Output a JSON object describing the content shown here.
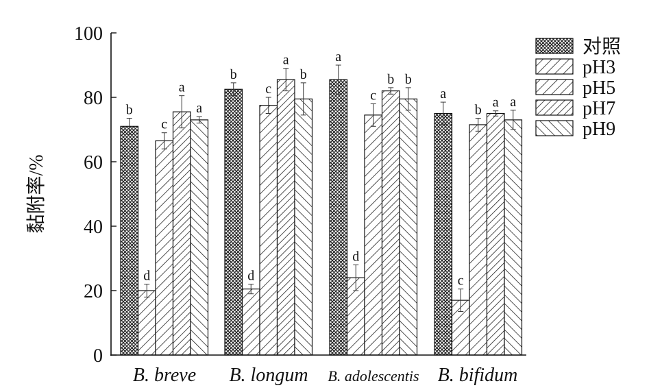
{
  "chart_data": {
    "type": "bar",
    "title": "",
    "xlabel": "",
    "ylabel": "黏附率/%",
    "ylim": [
      0,
      100
    ],
    "yticks": [
      0,
      20,
      40,
      60,
      80,
      100
    ],
    "grid": false,
    "legend_position": "top-right",
    "categories": [
      "B. breve",
      "B. longum",
      "B. adolescentis",
      "B. bifidum"
    ],
    "series": [
      {
        "name": "对照",
        "pattern": "crosshatch",
        "values": [
          71,
          82.5,
          85.5,
          75
        ],
        "errors": [
          2.5,
          2,
          4.5,
          3.5
        ],
        "labels": [
          "b",
          "b",
          "a",
          "a"
        ]
      },
      {
        "name": "pH3",
        "pattern": "diag-right",
        "values": [
          20,
          20.5,
          24,
          17
        ],
        "errors": [
          2,
          1.5,
          4,
          3.5
        ],
        "labels": [
          "d",
          "d",
          "d",
          "c"
        ]
      },
      {
        "name": "pH5",
        "pattern": "diag-right",
        "values": [
          66.5,
          77.5,
          74.5,
          71.5
        ],
        "errors": [
          2.5,
          2.5,
          3.5,
          2
        ],
        "labels": [
          "c",
          "c",
          "c",
          "b"
        ]
      },
      {
        "name": "pH7",
        "pattern": "diag-right-dense",
        "values": [
          75.5,
          85.5,
          82,
          75
        ],
        "errors": [
          5,
          3.5,
          1,
          0.8
        ],
        "labels": [
          "a",
          "a",
          "b",
          "a"
        ]
      },
      {
        "name": "pH9",
        "pattern": "diag-left",
        "values": [
          73,
          79.5,
          79.5,
          73
        ],
        "errors": [
          1,
          5,
          3.5,
          3
        ],
        "labels": [
          "a",
          "b",
          "b",
          "a"
        ]
      }
    ]
  }
}
